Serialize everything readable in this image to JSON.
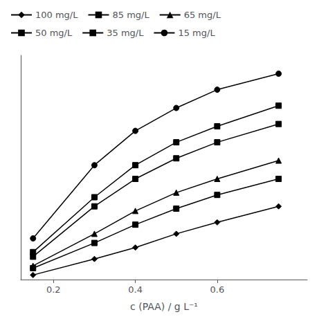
{
  "chart_data": {
    "type": "line",
    "xlabel": "c (PAA) / g L⁻¹",
    "x": [
      0.15,
      0.3,
      0.4,
      0.5,
      0.6,
      0.75
    ],
    "series": [
      {
        "name": "100 mg/L",
        "marker": "diamond",
        "values": [
          0.02,
          0.09,
          0.14,
          0.2,
          0.25,
          0.32
        ]
      },
      {
        "name": "85 mg/L",
        "marker": "square",
        "values": [
          0.05,
          0.16,
          0.24,
          0.31,
          0.37,
          0.44
        ]
      },
      {
        "name": "65 mg/L",
        "marker": "triangle",
        "values": [
          0.06,
          0.2,
          0.3,
          0.38,
          0.44,
          0.52
        ]
      },
      {
        "name": "50 mg/L",
        "marker": "square",
        "values": [
          0.1,
          0.32,
          0.44,
          0.53,
          0.6,
          0.68
        ]
      },
      {
        "name": "35 mg/L",
        "marker": "square",
        "values": [
          0.12,
          0.36,
          0.5,
          0.6,
          0.67,
          0.76
        ]
      },
      {
        "name": "15 mg/L",
        "marker": "circle",
        "values": [
          0.18,
          0.5,
          0.65,
          0.75,
          0.83,
          0.9
        ]
      }
    ],
    "color": "#000000",
    "xlim": [
      0.12,
      0.82
    ],
    "xticks": [
      0.2,
      0.4,
      0.6
    ],
    "ylim": [
      0.0,
      0.98
    ],
    "tick_labels": "x",
    "grid": false,
    "legend": "upper left"
  }
}
